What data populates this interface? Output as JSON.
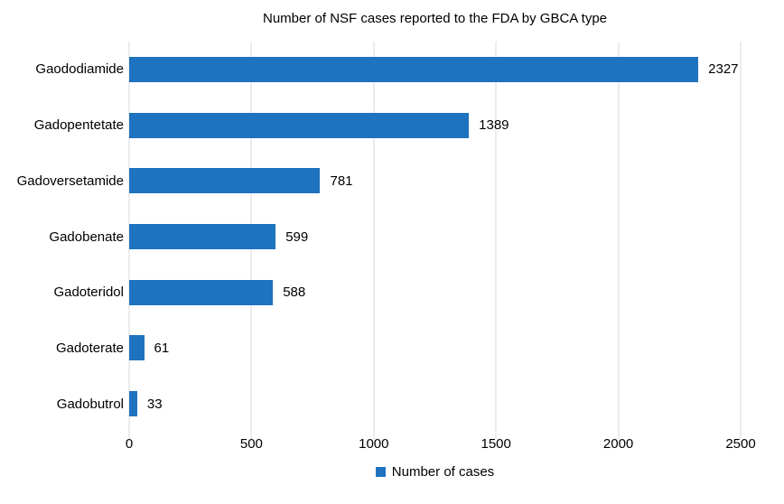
{
  "chart_data": {
    "type": "bar",
    "orientation": "horizontal",
    "title": "Number of NSF cases reported to the FDA by GBCA type",
    "categories": [
      "Gaododiamide",
      "Gadopentetate",
      "Gadoversetamide",
      "Gadobenate",
      "Gadoteridol",
      "Gadoterate",
      "Gadobutrol"
    ],
    "values": [
      2327,
      1389,
      781,
      599,
      588,
      61,
      33
    ],
    "xlim": [
      0,
      2500
    ],
    "x_ticks": [
      0,
      500,
      1000,
      1500,
      2000,
      2500
    ],
    "grid": "vertical",
    "legend_position": "bottom",
    "legend": [
      "Number of cases"
    ],
    "colors": {
      "bar": "#1e73be",
      "gridline": "#d9d9d9",
      "text": "#000000",
      "background": "#ffffff"
    }
  }
}
